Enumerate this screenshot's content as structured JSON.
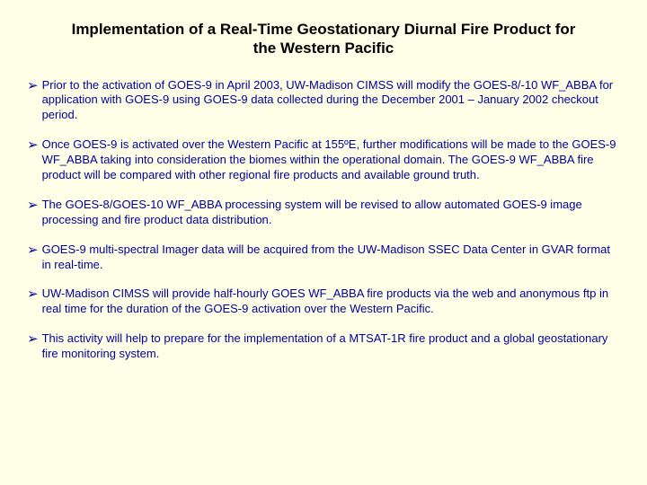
{
  "background_color": "#ffffe8",
  "title_color": "#000000",
  "bullet_color": "#000099",
  "title_fontsize": 17,
  "body_fontsize": 13,
  "title": "Implementation of a Real-Time Geostationary Diurnal Fire Product for the Western Pacific",
  "bullets": [
    " Prior to the activation of GOES-9 in April 2003, UW-Madison CIMSS will modify the GOES-8/-10 WF_ABBA for application with GOES-9 using GOES-9 data collected during the December 2001 – January 2002 checkout period.",
    "Once GOES-9 is activated over the Western Pacific at 155ºE, further modifications will be made to the GOES-9 WF_ABBA taking into consideration the biomes within the operational domain.  The GOES-9 WF_ABBA fire product will be compared with other regional fire products and available ground truth.",
    "The GOES-8/GOES-10 WF_ABBA processing system will be revised to allow automated GOES-9 image processing and fire product data distribution.",
    "GOES-9 multi-spectral Imager data will be acquired from the UW-Madison SSEC Data Center in GVAR format in real-time.",
    "UW-Madison CIMSS will provide half-hourly GOES WF_ABBA fire products via the web and anonymous ftp in real time for the duration of the GOES-9 activation over the Western Pacific.",
    "This activity will help to prepare for the implementation of a MTSAT-1R fire product and a global geostationary fire monitoring system."
  ],
  "bullet_marker": "➢"
}
